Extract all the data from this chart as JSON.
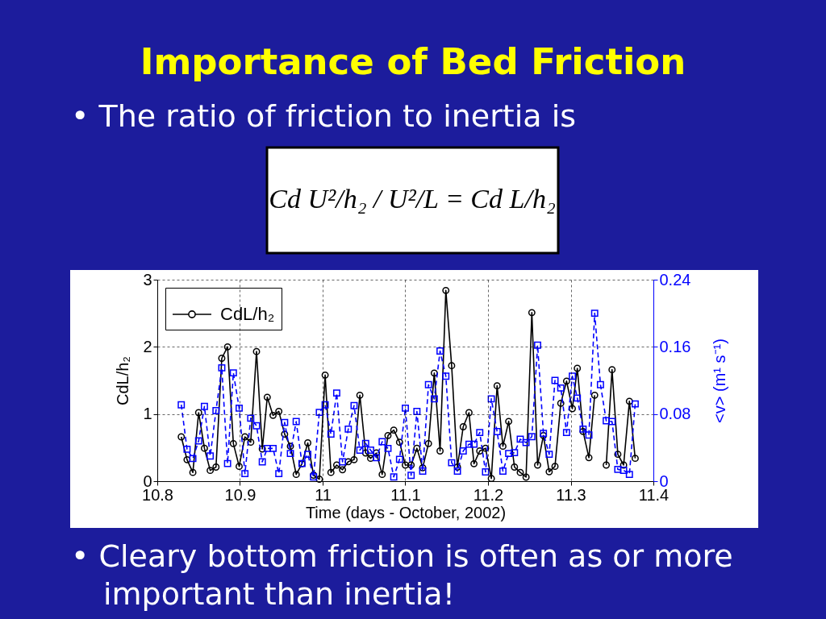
{
  "chart_data": {
    "type": "line",
    "title": "Importance of Bed Friction",
    "annotations": [
      "• The ratio of friction to inertia is",
      "Cd U²/h₂ / U²/L = Cd L/h₂",
      "• Cleary bottom friction is often as or more important than inertia!"
    ],
    "xlabel": "Time (days - October, 2002)",
    "ylabel": "CdL/h₂",
    "y2label": "<v> (m¹ s⁻¹)",
    "xlim": [
      10.8,
      11.4
    ],
    "xticks": [
      10.8,
      10.9,
      11,
      11.1,
      11.2,
      11.3,
      11.4
    ],
    "ylim": [
      0,
      3
    ],
    "yticks": [
      0,
      1,
      2,
      3
    ],
    "y2lim": [
      0,
      0.24
    ],
    "y2ticks": [
      0,
      0.08,
      0.16,
      0.24
    ],
    "grid": true,
    "legend": "top left",
    "x": [
      10.829,
      10.836,
      10.843,
      10.85,
      10.857,
      10.864,
      10.871,
      10.878,
      10.885,
      10.892,
      10.899,
      10.906,
      10.913,
      10.92,
      10.927,
      10.933,
      10.94,
      10.947,
      10.954,
      10.961,
      10.968,
      10.975,
      10.982,
      10.989,
      10.996,
      11.003,
      11.01,
      11.017,
      11.024,
      11.031,
      11.038,
      11.045,
      11.052,
      11.058,
      11.065,
      11.072,
      11.079,
      11.086,
      11.093,
      11.1,
      11.107,
      11.114,
      11.121,
      11.128,
      11.135,
      11.142,
      11.149,
      11.156,
      11.163,
      11.17,
      11.177,
      11.183,
      11.19,
      11.197,
      11.204,
      11.211,
      11.218,
      11.225,
      11.232,
      11.239,
      11.246,
      11.253,
      11.26,
      11.267,
      11.274,
      11.281,
      11.288,
      11.295,
      11.302,
      11.308,
      11.315,
      11.322,
      11.329,
      11.336,
      11.343,
      11.35,
      11.357,
      11.364,
      11.371,
      11.378
    ],
    "series": [
      {
        "name": "CdL/h₂",
        "color": "#000000",
        "marker": "circle",
        "line_style": "solid",
        "values": [
          0.66,
          0.32,
          0.13,
          1.02,
          0.49,
          0.16,
          0.21,
          1.83,
          2.0,
          0.56,
          0.22,
          0.66,
          0.58,
          1.93,
          0.48,
          1.25,
          0.98,
          1.04,
          0.7,
          0.52,
          0.1,
          0.26,
          0.57,
          0.09,
          0.03,
          1.58,
          0.13,
          0.24,
          0.17,
          0.29,
          0.32,
          1.28,
          0.42,
          0.34,
          0.42,
          0.1,
          0.68,
          0.76,
          0.58,
          0.24,
          0.24,
          0.49,
          0.2,
          0.56,
          1.61,
          0.45,
          2.84,
          1.72,
          0.21,
          0.81,
          1.02,
          0.26,
          0.45,
          0.49,
          0.04,
          1.42,
          0.52,
          0.89,
          0.21,
          0.13,
          0.06,
          2.51,
          0.24,
          0.68,
          0.14,
          0.22,
          1.16,
          1.49,
          1.08,
          1.68,
          0.74,
          0.35,
          1.28,
          null,
          0.24,
          1.66,
          0.4,
          0.24,
          1.19,
          0.34
        ]
      },
      {
        "color": "#0000ff",
        "axis": "y2",
        "marker": "square",
        "line_style": "dashed",
        "values": [
          0.091,
          0.038,
          0.027,
          0.048,
          0.089,
          0.03,
          0.084,
          0.135,
          0.021,
          0.129,
          0.087,
          0.009,
          0.075,
          0.066,
          0.023,
          0.039,
          0.039,
          0.009,
          0.07,
          0.033,
          0.071,
          0.021,
          0.032,
          0.005,
          0.082,
          0.091,
          0.056,
          0.105,
          0.023,
          0.062,
          0.09,
          0.037,
          0.045,
          0.037,
          0.028,
          0.047,
          0.039,
          0.005,
          0.026,
          0.087,
          0.007,
          0.083,
          0.012,
          0.115,
          0.098,
          0.155,
          0.125,
          0.022,
          0.012,
          0.036,
          0.044,
          0.044,
          0.058,
          0.011,
          0.098,
          0.059,
          0.012,
          0.033,
          0.034,
          0.05,
          0.046,
          0.053,
          0.162,
          0.057,
          0.032,
          0.12,
          0.111,
          0.058,
          0.125,
          0.099,
          0.062,
          0.055,
          0.2,
          0.115,
          0.072,
          0.071,
          0.014,
          0.013,
          0.008,
          0.092
        ]
      }
    ]
  }
}
